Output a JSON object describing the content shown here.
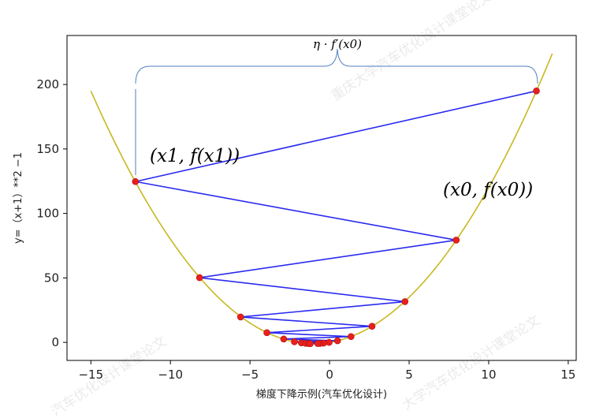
{
  "chart_data": {
    "type": "line",
    "xlabel": "梯度下降示例(汽车优化设计)",
    "ylabel": "y=（x+1）**2 −1",
    "xlim": [
      -16.5,
      15.5
    ],
    "ylim": [
      -14,
      238
    ],
    "xticks": [
      -15,
      -10,
      -5,
      0,
      5,
      10,
      15
    ],
    "yticks": [
      0,
      50,
      100,
      150,
      200
    ],
    "curve": {
      "name": "y=(x+1)^2-1",
      "color": "#c8b820",
      "x_range": [
        -15,
        14
      ]
    },
    "path": {
      "color": "#2a2af0",
      "points": [
        {
          "x": 13.0,
          "y": 195.0
        },
        {
          "x": -12.2,
          "y": 124.7
        },
        {
          "x": 7.96,
          "y": 79.3
        },
        {
          "x": -8.17,
          "y": 50.2
        },
        {
          "x": 4.74,
          "y": 31.6
        },
        {
          "x": -5.59,
          "y": 19.7
        },
        {
          "x": 2.67,
          "y": 12.5
        },
        {
          "x": -3.94,
          "y": 7.5
        },
        {
          "x": 1.35,
          "y": 4.5
        },
        {
          "x": -2.88,
          "y": 2.6
        },
        {
          "x": 0.5,
          "y": 1.25
        },
        {
          "x": -2.21,
          "y": 0.5
        },
        {
          "x": -0.03,
          "y": 0.0
        },
        {
          "x": -1.77,
          "y": -0.4
        },
        {
          "x": -0.38,
          "y": -0.6
        },
        {
          "x": -1.5,
          "y": -0.75
        },
        {
          "x": -0.6,
          "y": -0.84
        },
        {
          "x": -1.32,
          "y": -0.9
        },
        {
          "x": -0.74,
          "y": -0.93
        },
        {
          "x": -1.21,
          "y": -0.96
        }
      ]
    },
    "point_color": "#e8201c",
    "annotations": {
      "step": "η · f′(x0)",
      "point1": "(x1,  f(x1))",
      "point0": "(x0,  f(x0))"
    }
  },
  "watermarks": [
    "重庆大学汽车优化设计课堂论文",
    "汽车优化设计课堂论文",
    "大学汽车优化设计课堂论文"
  ]
}
